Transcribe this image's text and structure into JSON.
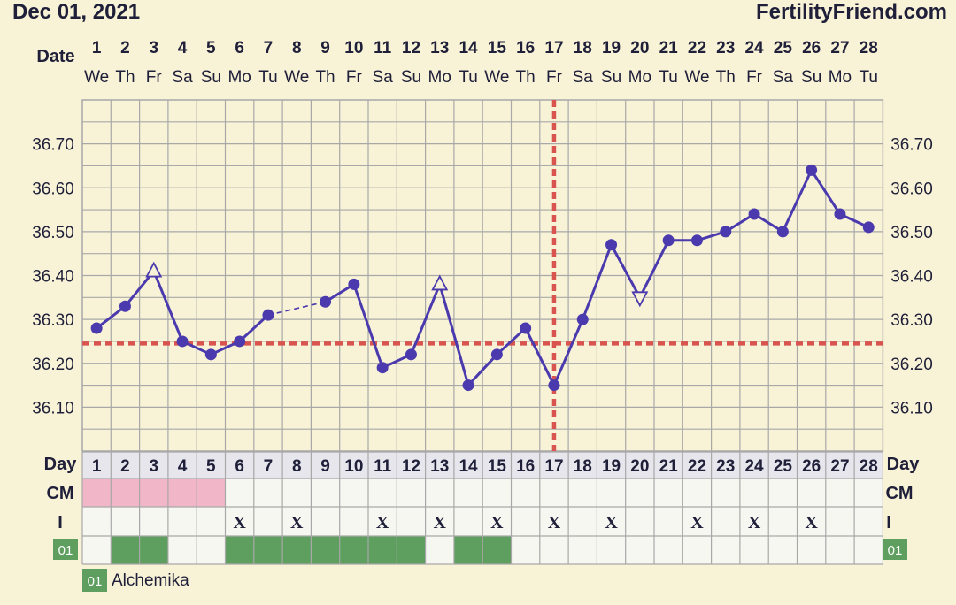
{
  "header": {
    "date": "Dec 01, 2021",
    "site": "FertilityFriend.com"
  },
  "labels": {
    "date_row": "Date",
    "day_row": "Day",
    "cm_row": "CM",
    "i_row": "I",
    "legend_code": "01",
    "legend_name": "Alchemika"
  },
  "colors": {
    "background": "#f8f3d6",
    "line": "#4a3aae",
    "coverline": "#d9534f",
    "cm_fill": "#f2b6c9",
    "med_fill": "#5e9e5e",
    "grid": "#a8a8a8"
  },
  "chart_data": {
    "type": "line",
    "days": [
      1,
      2,
      3,
      4,
      5,
      6,
      7,
      8,
      9,
      10,
      11,
      12,
      13,
      14,
      15,
      16,
      17,
      18,
      19,
      20,
      21,
      22,
      23,
      24,
      25,
      26,
      27,
      28
    ],
    "weekdays": [
      "We",
      "Th",
      "Fr",
      "Sa",
      "Su",
      "Mo",
      "Tu",
      "We",
      "Th",
      "Fr",
      "Sa",
      "Su",
      "Mo",
      "Tu",
      "We",
      "Th",
      "Fr",
      "Sa",
      "Su",
      "Mo",
      "Tu",
      "We",
      "Th",
      "Fr",
      "Sa",
      "Su",
      "Mo",
      "Tu"
    ],
    "temps": [
      36.28,
      36.33,
      36.41,
      36.25,
      36.22,
      36.25,
      36.31,
      null,
      36.34,
      36.38,
      36.19,
      36.22,
      36.38,
      36.15,
      36.22,
      36.28,
      36.15,
      36.3,
      36.47,
      36.35,
      36.48,
      36.48,
      36.5,
      36.54,
      36.5,
      36.64,
      36.54,
      36.51
    ],
    "open_up_markers": [
      3,
      13
    ],
    "open_down_markers": [
      20
    ],
    "dashed_segment": [
      7,
      9
    ],
    "y_ticks": [
      "36.70",
      "36.60",
      "36.50",
      "36.40",
      "36.30",
      "36.20",
      "36.10"
    ],
    "y_tick_values": [
      36.7,
      36.6,
      36.5,
      36.4,
      36.3,
      36.2,
      36.1
    ],
    "ylim": [
      36.0,
      36.8
    ],
    "coverline": 36.245,
    "ovulation_day": 17,
    "cm_days": [
      1,
      2,
      3,
      4,
      5
    ],
    "intercourse_days": [
      6,
      8,
      11,
      13,
      15,
      17,
      19,
      22,
      24,
      26
    ],
    "intercourse_mark": "X",
    "medication_days": [
      2,
      3,
      6,
      7,
      8,
      9,
      10,
      11,
      12,
      14,
      15
    ]
  }
}
